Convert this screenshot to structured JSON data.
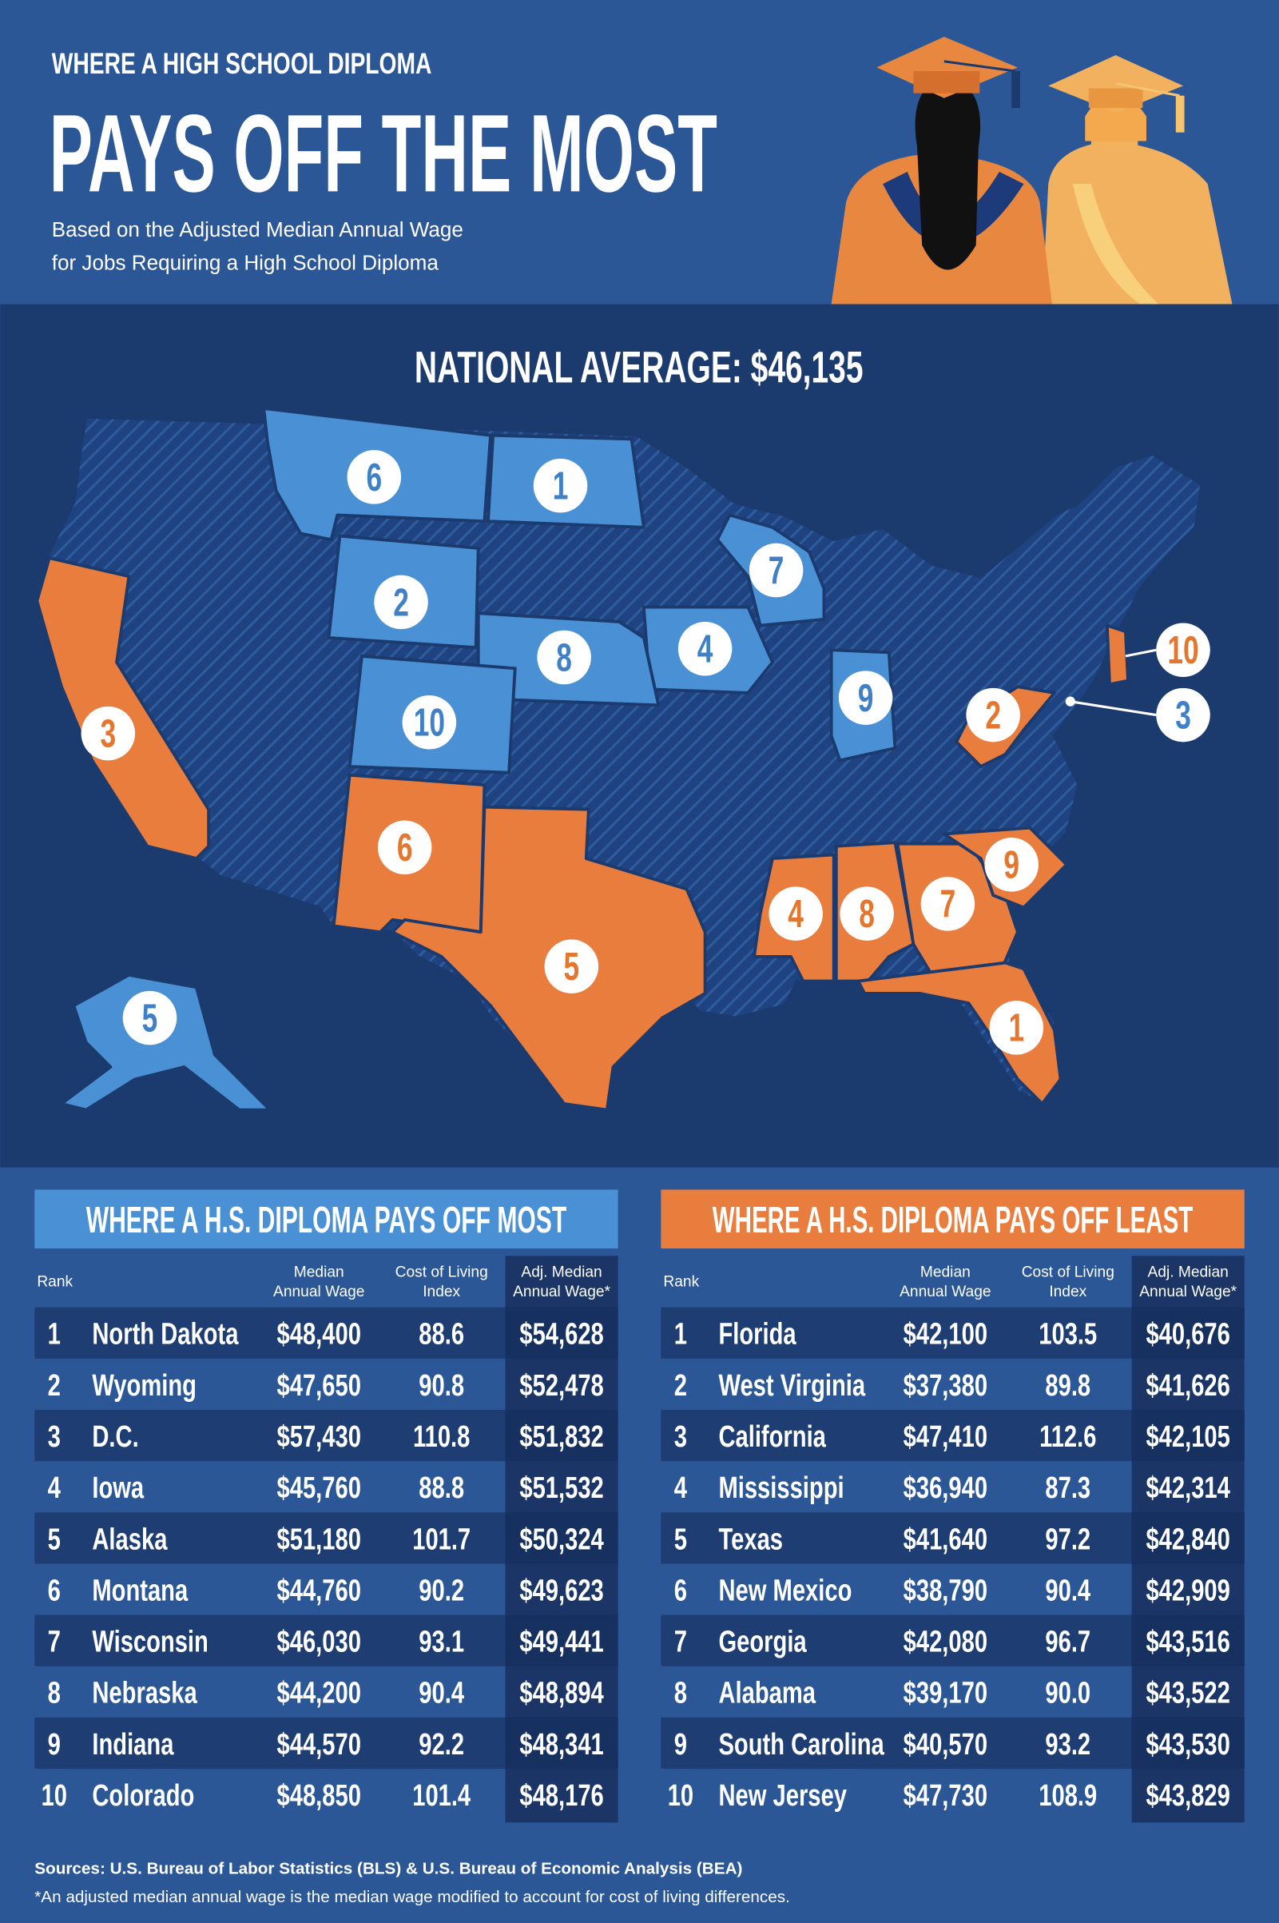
{
  "header": {
    "kicker": "WHERE A HIGH SCHOOL DIPLOMA",
    "title": "PAYS OFF THE MOST",
    "subtitle": [
      "Based on the Adjusted Median Annual Wage",
      "for Jobs Requiring a High School Diploma"
    ]
  },
  "map": {
    "heading": "NATIONAL AVERAGE: $46,135",
    "most_markers": [
      "6",
      "1",
      "2",
      "7",
      "4",
      "8",
      "9",
      "10",
      "5",
      "3"
    ],
    "least_markers": [
      "3",
      "6",
      "5",
      "4",
      "8",
      "7",
      "9",
      "1",
      "2",
      "10"
    ]
  },
  "tables": [
    {
      "title": "WHERE A H.S. DIPLOMA PAYS OFF MOST",
      "columns": [
        [
          "Rank"
        ],
        [
          "Median",
          "Annual Wage"
        ],
        [
          "Cost of Living",
          "Index"
        ],
        [
          "Adj. Median",
          "Annual Wage*"
        ]
      ],
      "rows": [
        [
          "1",
          "North Dakota",
          "$48,400",
          "88.6",
          "$54,628"
        ],
        [
          "2",
          "Wyoming",
          "$47,650",
          "90.8",
          "$52,478"
        ],
        [
          "3",
          "D.C.",
          "$57,430",
          "110.8",
          "$51,832"
        ],
        [
          "4",
          "Iowa",
          "$45,760",
          "88.8",
          "$51,532"
        ],
        [
          "5",
          "Alaska",
          "$51,180",
          "101.7",
          "$50,324"
        ],
        [
          "6",
          "Montana",
          "$44,760",
          "90.2",
          "$49,623"
        ],
        [
          "7",
          "Wisconsin",
          "$46,030",
          "93.1",
          "$49,441"
        ],
        [
          "8",
          "Nebraska",
          "$44,200",
          "90.4",
          "$48,894"
        ],
        [
          "9",
          "Indiana",
          "$44,570",
          "92.2",
          "$48,341"
        ],
        [
          "10",
          "Colorado",
          "$48,850",
          "101.4",
          "$48,176"
        ]
      ]
    },
    {
      "title": "WHERE A H.S. DIPLOMA PAYS OFF LEAST",
      "columns": [
        [
          "Rank"
        ],
        [
          "Median",
          "Annual Wage"
        ],
        [
          "Cost of Living",
          "Index"
        ],
        [
          "Adj. Median",
          "Annual Wage*"
        ]
      ],
      "rows": [
        [
          "1",
          "Florida",
          "$42,100",
          "103.5",
          "$40,676"
        ],
        [
          "2",
          "West Virginia",
          "$37,380",
          "89.8",
          "$41,626"
        ],
        [
          "3",
          "California",
          "$47,410",
          "112.6",
          "$42,105"
        ],
        [
          "4",
          "Mississippi",
          "$36,940",
          "87.3",
          "$42,314"
        ],
        [
          "5",
          "Texas",
          "$41,640",
          "97.2",
          "$42,840"
        ],
        [
          "6",
          "New Mexico",
          "$38,790",
          "90.4",
          "$42,909"
        ],
        [
          "7",
          "Georgia",
          "$42,080",
          "96.7",
          "$43,516"
        ],
        [
          "8",
          "Alabama",
          "$39,170",
          "90.0",
          "$43,522"
        ],
        [
          "9",
          "South Carolina",
          "$40,570",
          "93.2",
          "$43,530"
        ],
        [
          "10",
          "New Jersey",
          "$47,730",
          "108.9",
          "$43,829"
        ]
      ]
    }
  ],
  "footer": {
    "sources": "Sources: U.S. Bureau of Labor Statistics (BLS) & U.S. Bureau of Economic Analysis (BEA)",
    "note": "*An adjusted median annual wage is the median wage modified to account for cost of living differences."
  }
}
